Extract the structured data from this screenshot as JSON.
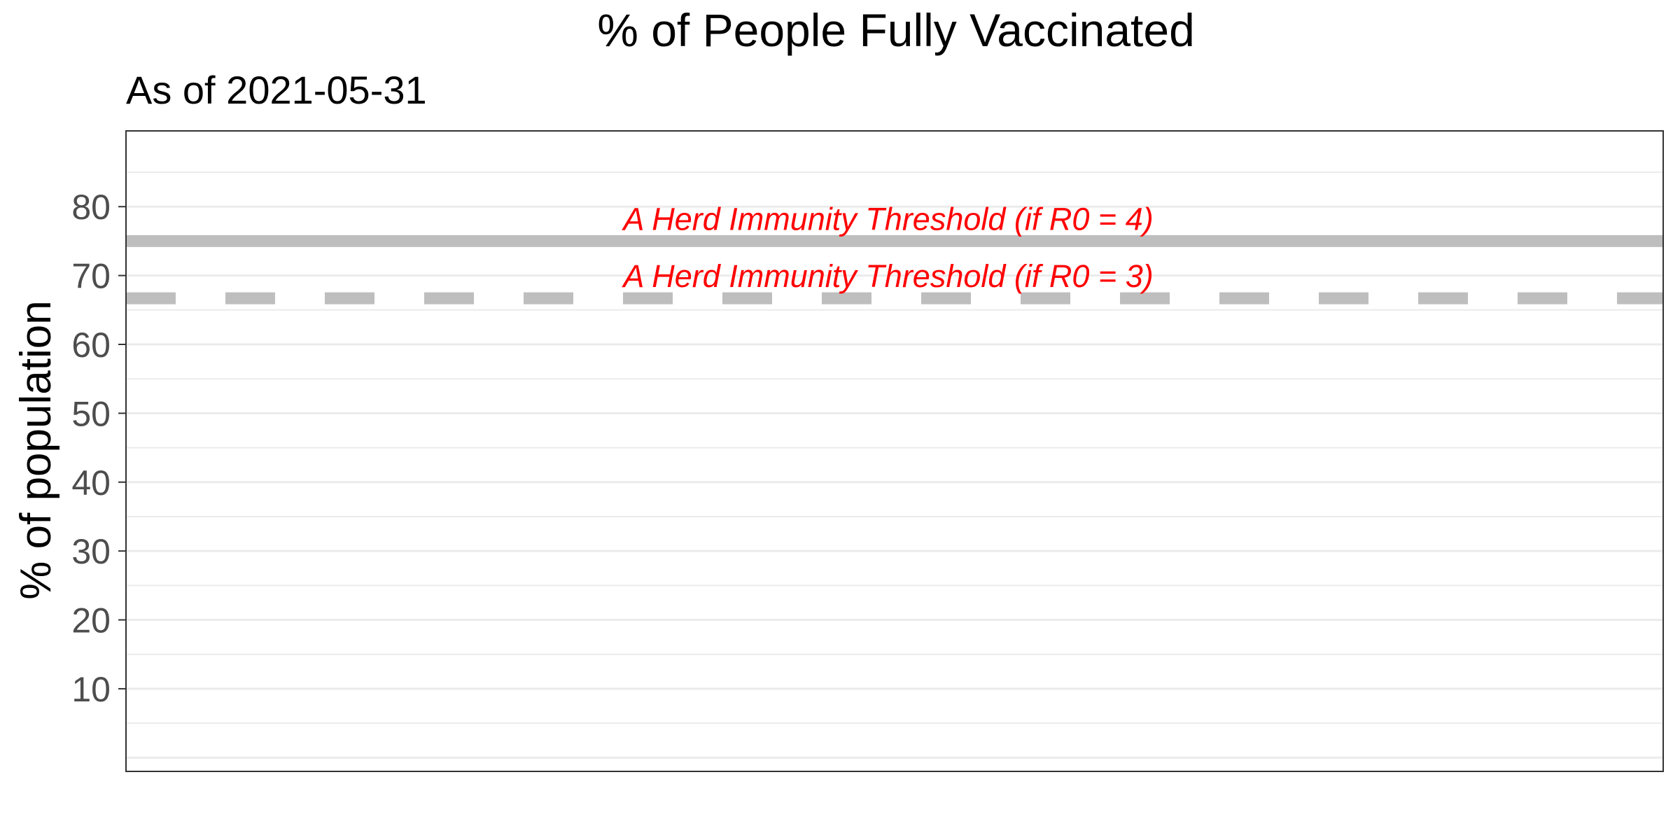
{
  "chart_data": {
    "type": "line",
    "title": "% of People Fully Vaccinated",
    "subtitle": "As of 2021-05-31",
    "xlabel": "",
    "ylabel": "% of population",
    "ylim": [
      -2,
      91
    ],
    "yticks": [
      10,
      20,
      30,
      40,
      50,
      60,
      70,
      80
    ],
    "grid": true,
    "series": [],
    "reference_lines": [
      {
        "label": "A Herd Immunity Threshold (if R0 = 4)",
        "y": 75,
        "style": "solid",
        "color": "#bebebe"
      },
      {
        "label": "A Herd Immunity Threshold (if R0 = 3)",
        "y": 66.7,
        "style": "dashed",
        "color": "#bebebe"
      }
    ],
    "annotation_color": "#ff0000"
  }
}
